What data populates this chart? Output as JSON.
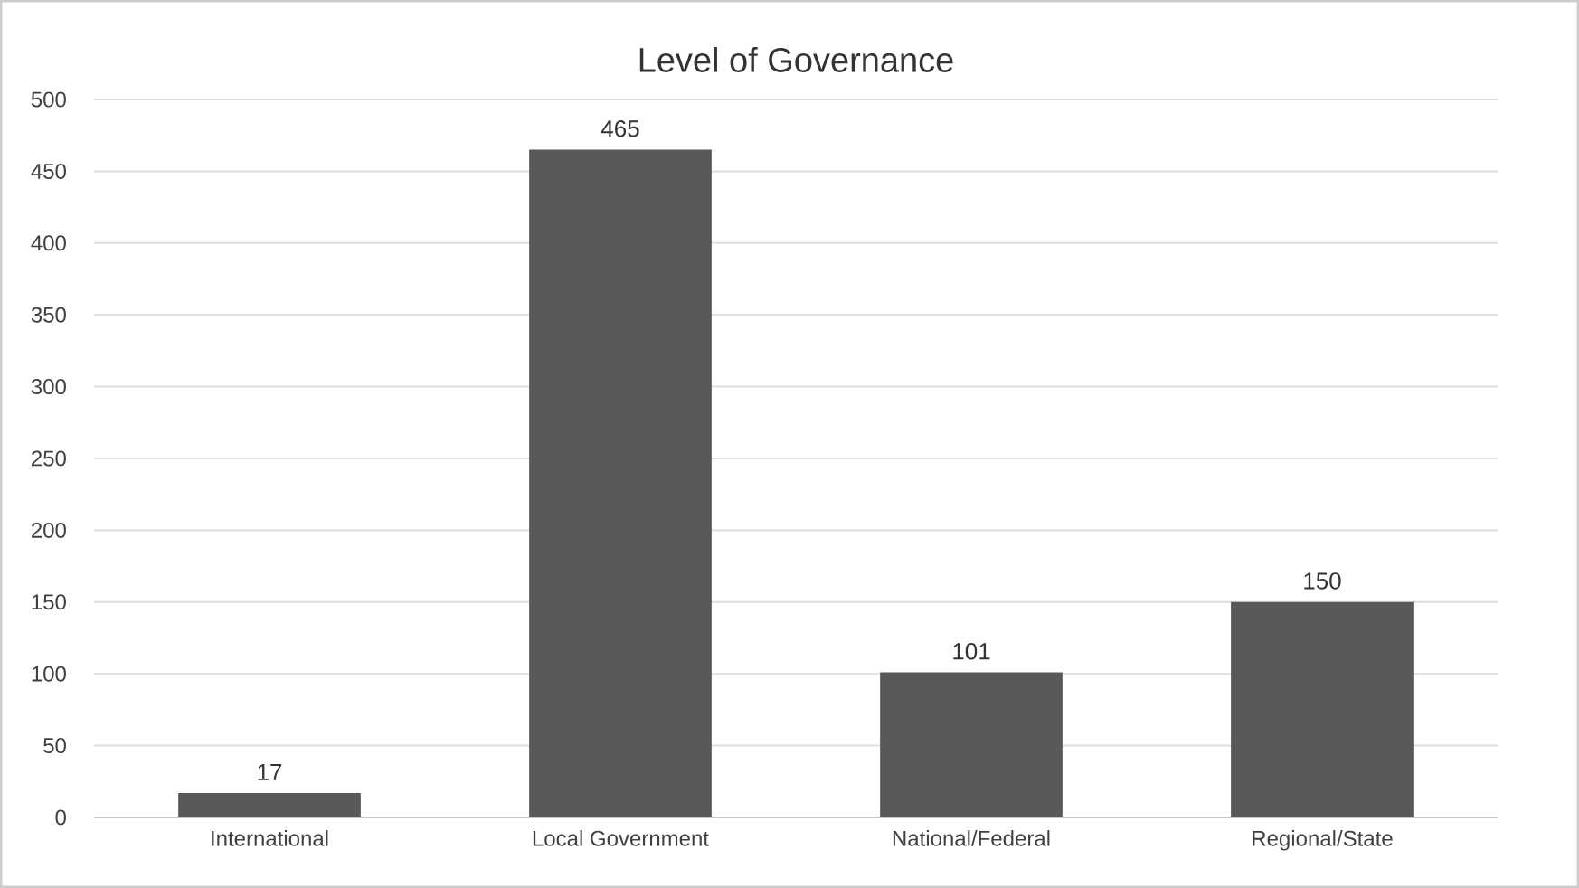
{
  "chart_data": {
    "type": "bar",
    "title": "Level of Governance",
    "categories": [
      "International",
      "Local Government",
      "National/Federal",
      "Regional/State"
    ],
    "values": [
      17,
      465,
      101,
      150
    ],
    "color": "#595959",
    "ylim": [
      0,
      500
    ],
    "yticks": [
      0,
      50,
      100,
      150,
      200,
      250,
      300,
      350,
      400,
      450,
      500
    ],
    "grid": "y",
    "data_labels": true
  }
}
